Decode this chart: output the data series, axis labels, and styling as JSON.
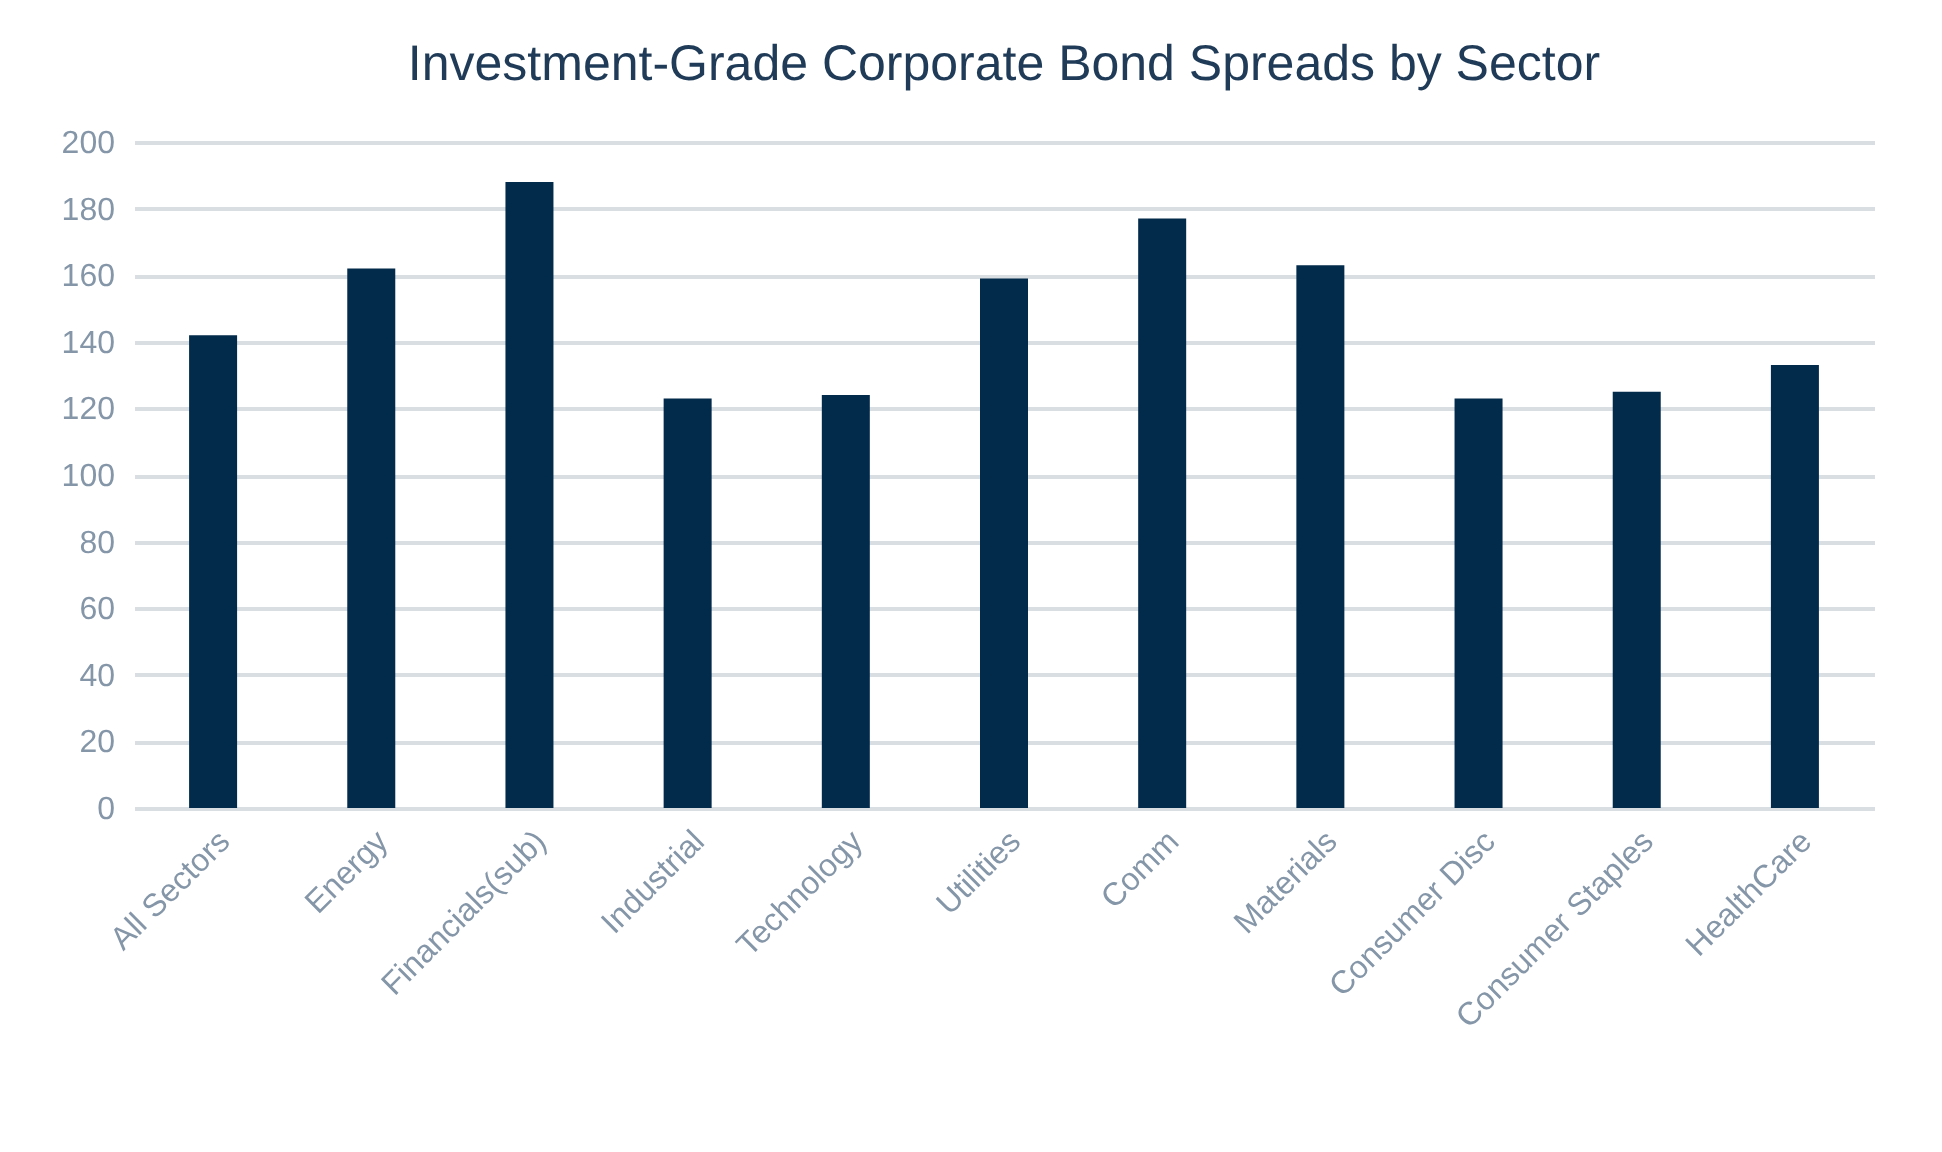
{
  "chart_data": {
    "type": "bar",
    "title": "Investment-Grade Corporate Bond Spreads by Sector",
    "categories": [
      "All Sectors",
      "Energy",
      "Financials(sub)",
      "Industrial",
      "Technology",
      "Utilities",
      "Comm",
      "Materials",
      "Consumer Disc",
      "Consumer Staples",
      "HealthCare"
    ],
    "values": [
      142,
      162,
      188,
      123,
      124,
      159,
      177,
      163,
      123,
      125,
      133
    ],
    "color": "#022a4a",
    "ylim": [
      0,
      200
    ],
    "yticks": [
      0,
      20,
      40,
      60,
      80,
      100,
      120,
      140,
      160,
      180,
      200
    ],
    "grid": "y"
  }
}
